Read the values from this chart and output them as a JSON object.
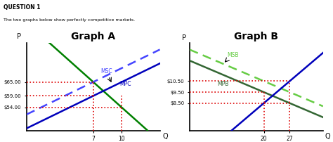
{
  "title_question": "QUESTION 1",
  "subtitle": "The two graphs below show perfectly competitive markets.",
  "graph_a_title": "Graph A",
  "graph_b_title": "Graph B",
  "background_color": "#ffffff",
  "graph_a": {
    "xlabel": "Q",
    "ylabel": "P",
    "prices": [
      54.0,
      59.0,
      65.0
    ],
    "price_labels": [
      "$54.00",
      "$59.00",
      "$65.00"
    ],
    "quantities": [
      7,
      10
    ],
    "qty_labels": [
      "7",
      "10"
    ],
    "mpc_color": "#0000bb",
    "msc_color": "#4444ff",
    "supply_color": "#008000",
    "label_mpc": "MPC",
    "label_msc": "MSC",
    "p_min": 44,
    "p_max": 82,
    "q_min": 0,
    "q_max": 14
  },
  "graph_b": {
    "xlabel": "Q",
    "ylabel": "P",
    "prices": [
      8.5,
      9.5,
      10.5
    ],
    "price_labels": [
      "$8.50",
      "$9.50",
      "$10.50"
    ],
    "quantities": [
      20,
      27
    ],
    "qty_labels": [
      "20",
      "27"
    ],
    "mpb_color": "#336633",
    "msb_color": "#66cc44",
    "supply_color": "#0000bb",
    "label_mpb": "MPB",
    "label_msb": "MSB",
    "p_min": 6.0,
    "p_max": 14.0,
    "q_min": 0,
    "q_max": 36
  },
  "dotted_color": "#dd0000",
  "annotation_color": "#4444ff",
  "annotation_color_b": "#66cc44"
}
